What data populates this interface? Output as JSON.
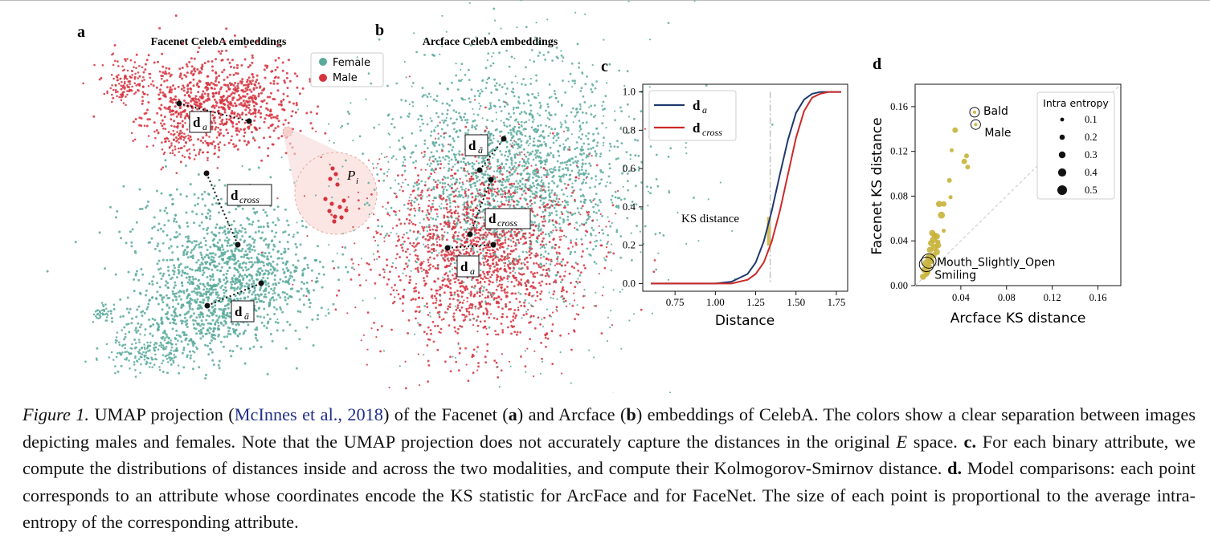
{
  "panels": {
    "a": {
      "letter": "a",
      "title": "Facenet CelebA embeddings",
      "legend": [
        {
          "label": "Female",
          "color": "#5aaa9c"
        },
        {
          "label": "Male",
          "color": "#d6333e"
        }
      ],
      "labels": [
        "d",
        "a",
        "d",
        "cross",
        "d",
        "ā",
        "P",
        "i"
      ]
    },
    "b": {
      "letter": "b",
      "title": "Arcface CelebA embeddings",
      "labels": [
        "d",
        "ā",
        "d",
        "cross",
        "d",
        "a"
      ]
    },
    "c": {
      "letter": "c",
      "chart_data": {
        "type": "line",
        "xlabel": "Distance",
        "ylabel": "",
        "xlim": [
          0.55,
          1.82
        ],
        "ylim": [
          -0.04,
          1.04
        ],
        "xticks": [
          0.75,
          1.0,
          1.25,
          1.5,
          1.75
        ],
        "xtick_labels": [
          "0.75",
          "1.00",
          "1.25",
          "1.50",
          "1.75"
        ],
        "yticks": [
          0.0,
          0.2,
          0.4,
          0.6,
          0.8,
          1.0
        ],
        "ytick_labels": [
          "0.0",
          "0.2",
          "0.4",
          "0.6",
          "0.8",
          "1.0"
        ],
        "annotation": "KS distance",
        "ks_x": 1.34,
        "series": [
          {
            "name": "d",
            "sub": "a",
            "color": "#1f3a6e",
            "x": [
              0.6,
              1.0,
              1.1,
              1.2,
              1.25,
              1.3,
              1.35,
              1.4,
              1.45,
              1.5,
              1.55,
              1.6,
              1.65,
              1.7,
              1.78
            ],
            "y": [
              0.0,
              0.0,
              0.01,
              0.05,
              0.11,
              0.22,
              0.38,
              0.57,
              0.75,
              0.89,
              0.96,
              0.99,
              1.0,
              1.0,
              1.0
            ]
          },
          {
            "name": "d",
            "sub": "cross",
            "color": "#cc2a2a",
            "x": [
              0.6,
              1.0,
              1.1,
              1.2,
              1.25,
              1.3,
              1.35,
              1.4,
              1.45,
              1.5,
              1.55,
              1.6,
              1.65,
              1.7,
              1.78
            ],
            "y": [
              0.0,
              0.0,
              0.0,
              0.02,
              0.05,
              0.11,
              0.22,
              0.38,
              0.57,
              0.76,
              0.9,
              0.97,
              0.99,
              1.0,
              1.0
            ]
          }
        ]
      }
    },
    "d": {
      "letter": "d",
      "chart_data": {
        "type": "scatter",
        "xlabel": "Arcface KS distance",
        "ylabel": "Facenet KS distance",
        "xlim": [
          0.0,
          0.18
        ],
        "ylim": [
          0.0,
          0.18
        ],
        "xticks": [
          0.04,
          0.08,
          0.12,
          0.16
        ],
        "xtick_labels": [
          "0.04",
          "0.08",
          "0.12",
          "0.16"
        ],
        "yticks": [
          0.0,
          0.04,
          0.08,
          0.12,
          0.16
        ],
        "ytick_labels": [
          "0.00",
          "0.04",
          "0.08",
          "0.12",
          "0.16"
        ],
        "point_color": "#c8b23a",
        "legend_title": "Intra entropy",
        "legend_sizes": [
          0.1,
          0.2,
          0.3,
          0.4,
          0.5
        ],
        "legend_labels": [
          "0.1",
          "0.2",
          "0.3",
          "0.4",
          "0.5"
        ],
        "annotations": [
          {
            "text": "Bald",
            "x": 0.052,
            "y": 0.155
          },
          {
            "text": "Male",
            "x": 0.053,
            "y": 0.144
          },
          {
            "text": "Mouth_Slightly_Open",
            "x": 0.012,
            "y": 0.022
          },
          {
            "text": "Smiling",
            "x": 0.01,
            "y": 0.019
          }
        ],
        "points": [
          {
            "x": 0.052,
            "y": 0.155,
            "s": 0.1
          },
          {
            "x": 0.053,
            "y": 0.144,
            "s": 0.1
          },
          {
            "x": 0.035,
            "y": 0.139,
            "s": 0.25
          },
          {
            "x": 0.045,
            "y": 0.116,
            "s": 0.2
          },
          {
            "x": 0.043,
            "y": 0.111,
            "s": 0.25
          },
          {
            "x": 0.046,
            "y": 0.106,
            "s": 0.2
          },
          {
            "x": 0.032,
            "y": 0.121,
            "s": 0.15
          },
          {
            "x": 0.03,
            "y": 0.094,
            "s": 0.2
          },
          {
            "x": 0.031,
            "y": 0.079,
            "s": 0.15
          },
          {
            "x": 0.025,
            "y": 0.073,
            "s": 0.25
          },
          {
            "x": 0.021,
            "y": 0.073,
            "s": 0.3
          },
          {
            "x": 0.023,
            "y": 0.063,
            "s": 0.35
          },
          {
            "x": 0.025,
            "y": 0.049,
            "s": 0.15
          },
          {
            "x": 0.015,
            "y": 0.047,
            "s": 0.3
          },
          {
            "x": 0.019,
            "y": 0.044,
            "s": 0.3
          },
          {
            "x": 0.016,
            "y": 0.041,
            "s": 0.35
          },
          {
            "x": 0.014,
            "y": 0.038,
            "s": 0.3
          },
          {
            "x": 0.02,
            "y": 0.036,
            "s": 0.3
          },
          {
            "x": 0.017,
            "y": 0.034,
            "s": 0.35
          },
          {
            "x": 0.013,
            "y": 0.032,
            "s": 0.3
          },
          {
            "x": 0.019,
            "y": 0.03,
            "s": 0.3
          },
          {
            "x": 0.016,
            "y": 0.027,
            "s": 0.3
          },
          {
            "x": 0.012,
            "y": 0.025,
            "s": 0.35
          },
          {
            "x": 0.014,
            "y": 0.022,
            "s": 0.3
          },
          {
            "x": 0.01,
            "y": 0.02,
            "s": 0.4
          },
          {
            "x": 0.012,
            "y": 0.017,
            "s": 0.3
          },
          {
            "x": 0.008,
            "y": 0.014,
            "s": 0.3
          },
          {
            "x": 0.011,
            "y": 0.012,
            "s": 0.25
          },
          {
            "x": 0.007,
            "y": 0.008,
            "s": 0.3
          },
          {
            "x": 0.01,
            "y": 0.01,
            "s": 0.2
          },
          {
            "x": 0.02,
            "y": 0.039,
            "s": 0.2
          },
          {
            "x": 0.017,
            "y": 0.045,
            "s": 0.25
          }
        ]
      }
    }
  },
  "caption": {
    "figure_label": "Figure 1.",
    "t1": " UMAP projection (",
    "cite_author": "McInnes et al., ",
    "cite_year": "2018",
    "t2": ") of the Facenet (",
    "a": "a",
    "t3": ") and Arcface (",
    "b": "b",
    "t4": ") embeddings of CelebA. The colors show a clear separation between images depicting males and females. Note that the UMAP projection does not accurately capture the distances in the original ",
    "E": "E",
    "t5": " space. ",
    "c": "c.",
    "t6": " For each binary attribute, we compute the distributions of distances inside and across the two modalities, and compute their Kolmogorov-Smirnov distance. ",
    "d": "d.",
    "t7": " Model comparisons: each point corresponds to an attribute whose coordinates encode the KS statistic for ArcFace and for FaceNet. The size of each point is proportional to the average intra-entropy of the corresponding attribute."
  }
}
